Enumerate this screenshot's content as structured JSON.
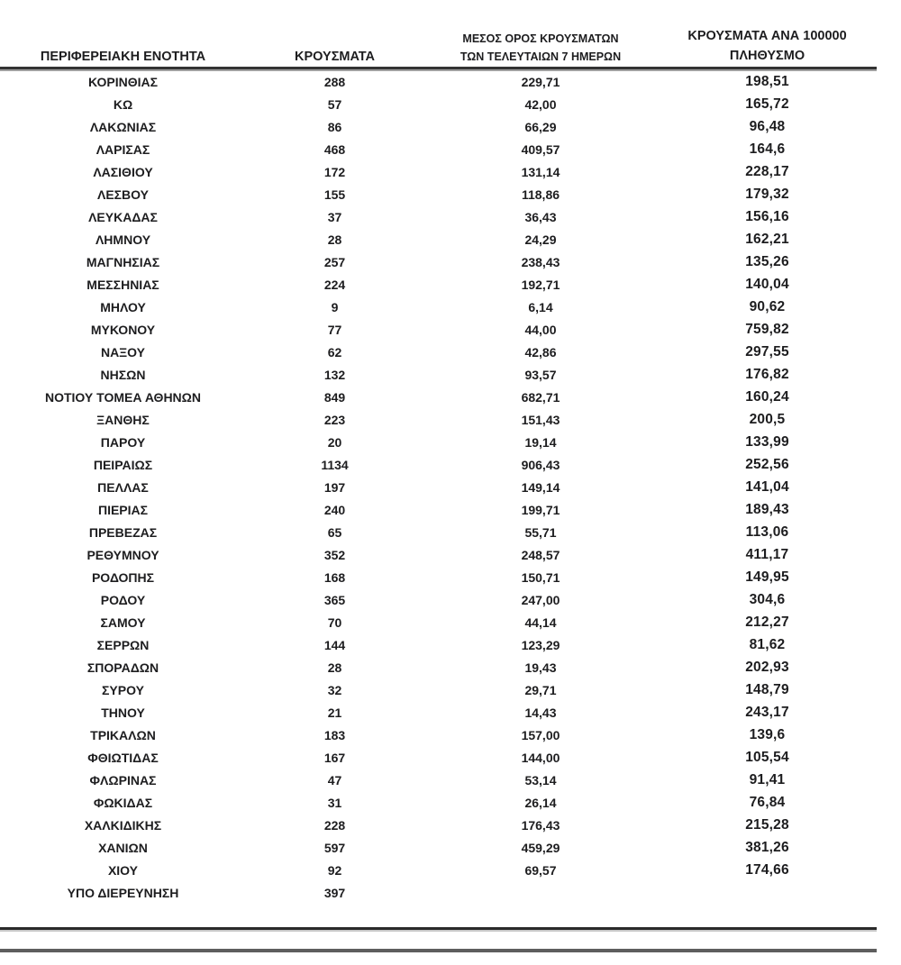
{
  "colors": {
    "text": "#1d1d1f",
    "header_rule": "#333333",
    "bottom_rule_dark": "#2a2a2a",
    "bottom_rule_gray": "#5e5e5e",
    "background": "#ffffff"
  },
  "table": {
    "header": {
      "col1": "ΠΕΡΙΦΕΡΕΙΑΚΗ ΕΝΟΤΗΤΑ",
      "col2": "ΚΡΟΥΣΜΑΤΑ",
      "col3_line1": "ΜΕΣΟΣ ΟΡΟΣ ΚΡΟΥΣΜΑΤΩΝ",
      "col3_line2": "ΤΩΝ ΤΕΛΕΥΤΑΙΩΝ 7 ΗΜΕΡΩΝ",
      "col4_line1": "ΚΡΟΥΣΜΑΤΑ ΑΝΑ 100000",
      "col4_line2": "ΠΛΗΘΥΣΜΟ"
    },
    "rows": [
      [
        "ΚΟΡΙΝΘΙΑΣ",
        "288",
        "229,71",
        "198,51"
      ],
      [
        "ΚΩ",
        "57",
        "42,00",
        "165,72"
      ],
      [
        "ΛΑΚΩΝΙΑΣ",
        "86",
        "66,29",
        "96,48"
      ],
      [
        "ΛΑΡΙΣΑΣ",
        "468",
        "409,57",
        "164,6"
      ],
      [
        "ΛΑΣΙΘΙΟΥ",
        "172",
        "131,14",
        "228,17"
      ],
      [
        "ΛΕΣΒΟΥ",
        "155",
        "118,86",
        "179,32"
      ],
      [
        "ΛΕΥΚΑΔΑΣ",
        "37",
        "36,43",
        "156,16"
      ],
      [
        "ΛΗΜΝΟΥ",
        "28",
        "24,29",
        "162,21"
      ],
      [
        "ΜΑΓΝΗΣΙΑΣ",
        "257",
        "238,43",
        "135,26"
      ],
      [
        "ΜΕΣΣΗΝΙΑΣ",
        "224",
        "192,71",
        "140,04"
      ],
      [
        "ΜΗΛΟΥ",
        "9",
        "6,14",
        "90,62"
      ],
      [
        "ΜΥΚΟΝΟΥ",
        "77",
        "44,00",
        "759,82"
      ],
      [
        "ΝΑΞΟΥ",
        "62",
        "42,86",
        "297,55"
      ],
      [
        "ΝΗΣΩΝ",
        "132",
        "93,57",
        "176,82"
      ],
      [
        "ΝΟΤΙΟΥ ΤΟΜΕΑ ΑΘΗΝΩΝ",
        "849",
        "682,71",
        "160,24"
      ],
      [
        "ΞΑΝΘΗΣ",
        "223",
        "151,43",
        "200,5"
      ],
      [
        "ΠΑΡΟΥ",
        "20",
        "19,14",
        "133,99"
      ],
      [
        "ΠΕΙΡΑΙΩΣ",
        "1134",
        "906,43",
        "252,56"
      ],
      [
        "ΠΕΛΛΑΣ",
        "197",
        "149,14",
        "141,04"
      ],
      [
        "ΠΙΕΡΙΑΣ",
        "240",
        "199,71",
        "189,43"
      ],
      [
        "ΠΡΕΒΕΖΑΣ",
        "65",
        "55,71",
        "113,06"
      ],
      [
        "ΡΕΘΥΜΝΟΥ",
        "352",
        "248,57",
        "411,17"
      ],
      [
        "ΡΟΔΟΠΗΣ",
        "168",
        "150,71",
        "149,95"
      ],
      [
        "ΡΟΔΟΥ",
        "365",
        "247,00",
        "304,6"
      ],
      [
        "ΣΑΜΟΥ",
        "70",
        "44,14",
        "212,27"
      ],
      [
        "ΣΕΡΡΩΝ",
        "144",
        "123,29",
        "81,62"
      ],
      [
        "ΣΠΟΡΑΔΩΝ",
        "28",
        "19,43",
        "202,93"
      ],
      [
        "ΣΥΡΟΥ",
        "32",
        "29,71",
        "148,79"
      ],
      [
        "ΤΗΝΟΥ",
        "21",
        "14,43",
        "243,17"
      ],
      [
        "ΤΡΙΚΑΛΩΝ",
        "183",
        "157,00",
        "139,6"
      ],
      [
        "ΦΘΙΩΤΙΔΑΣ",
        "167",
        "144,00",
        "105,54"
      ],
      [
        "ΦΛΩΡΙΝΑΣ",
        "47",
        "53,14",
        "91,41"
      ],
      [
        "ΦΩΚΙΔΑΣ",
        "31",
        "26,14",
        "76,84"
      ],
      [
        "ΧΑΛΚΙΔΙΚΗΣ",
        "228",
        "176,43",
        "215,28"
      ],
      [
        "ΧΑΝΙΩΝ",
        "597",
        "459,29",
        "381,26"
      ],
      [
        "ΧΙΟΥ",
        "92",
        "69,57",
        "174,66"
      ],
      [
        "ΥΠΟ ΔΙΕΡΕΥΝΗΣΗ",
        "397",
        "",
        ""
      ]
    ]
  }
}
